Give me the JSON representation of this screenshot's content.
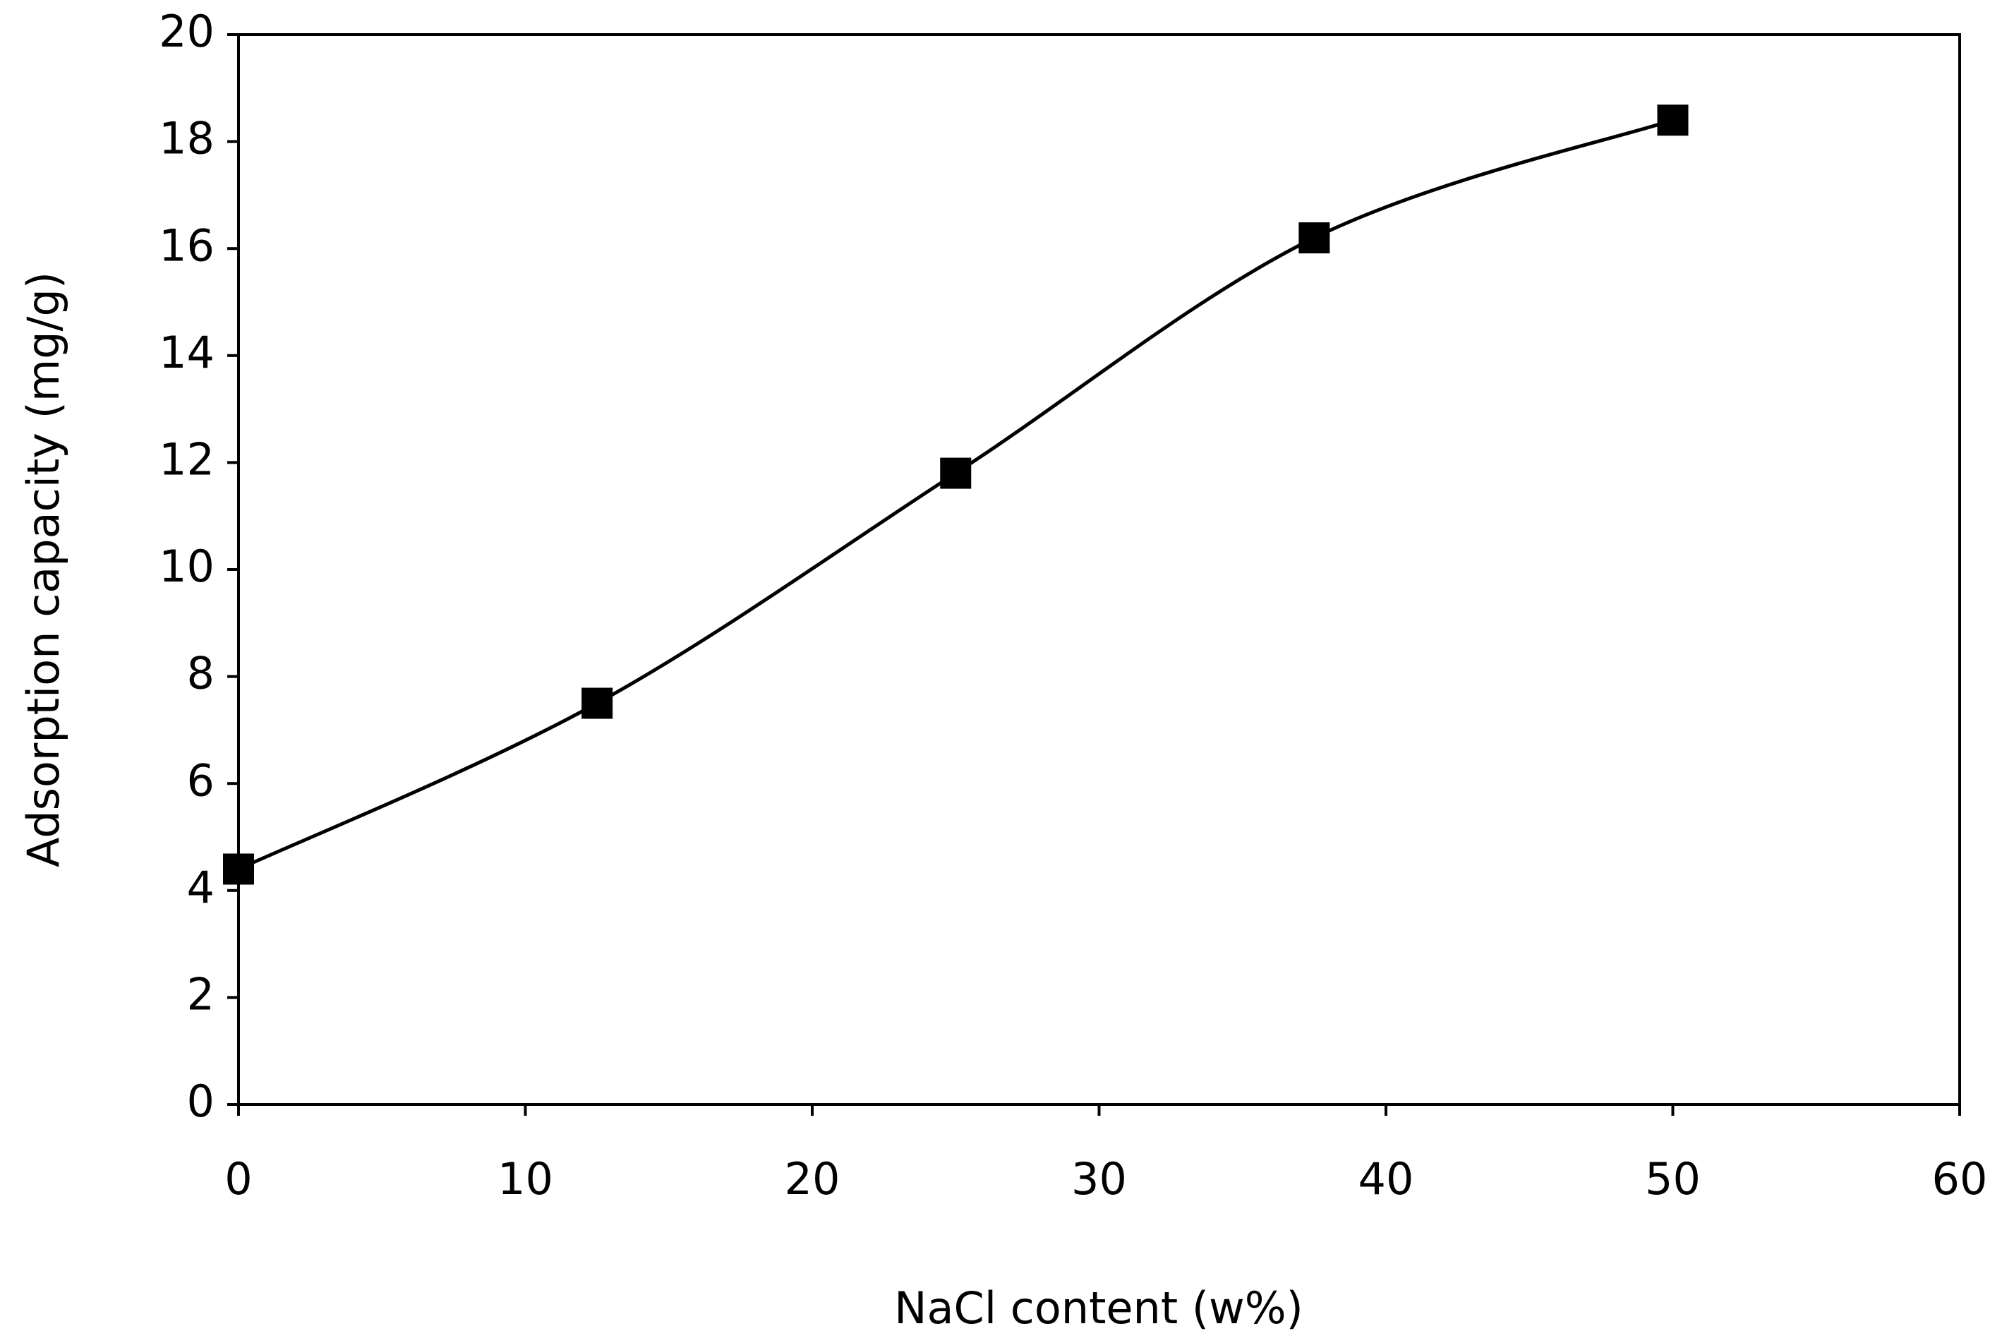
{
  "chart_data": {
    "type": "scatter",
    "x_label": "NaCl content (w%)",
    "y_label": "Adsorption capacity (mg/g)",
    "series": [
      {
        "color": "#000000",
        "marker": "square",
        "line": "smooth",
        "x": [
          0,
          12.5,
          25,
          37.5,
          50
        ],
        "values": [
          4.4,
          7.5,
          11.8,
          16.2,
          18.4
        ]
      }
    ],
    "xlim": [
      0,
      60
    ],
    "xticks": [
      0,
      10,
      20,
      30,
      40,
      50,
      60
    ],
    "ylim": [
      0,
      20
    ],
    "yticks": [
      0,
      2,
      4,
      6,
      8,
      10,
      12,
      14,
      16,
      18,
      20
    ],
    "grid": false
  }
}
